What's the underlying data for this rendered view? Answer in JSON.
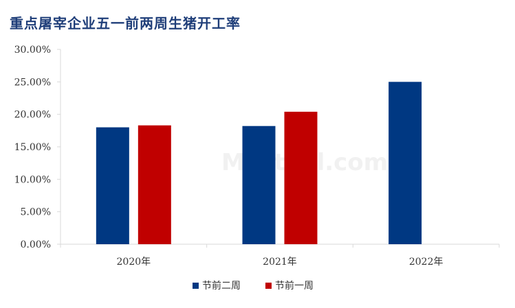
{
  "chart_data": {
    "type": "bar",
    "title": "重点屠宰企业五一前两周生猪开工率",
    "categories": [
      "2020年",
      "2021年",
      "2022年"
    ],
    "series": [
      {
        "name": "节前二周",
        "color": "#003882",
        "values": [
          18.0,
          18.2,
          25.0
        ]
      },
      {
        "name": "节前一周",
        "color": "#c00000",
        "values": [
          18.3,
          20.4,
          null
        ]
      }
    ],
    "ylim": [
      0,
      30
    ],
    "yticks": [
      "0.00%",
      "5.00%",
      "10.00%",
      "15.00%",
      "20.00%",
      "25.00%",
      "30.00%"
    ],
    "grid": false,
    "legend": "bottom-center"
  }
}
